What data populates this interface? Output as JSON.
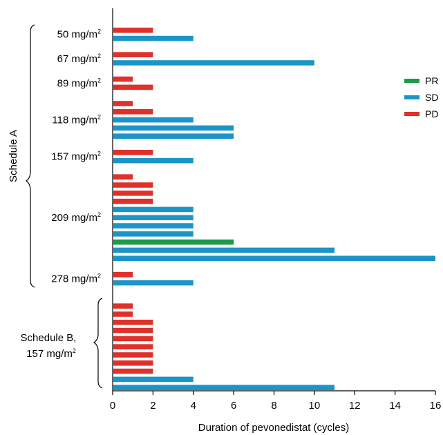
{
  "chart_data": {
    "type": "bar",
    "orientation": "horizontal",
    "xlabel": "Duration of pevonedistat (cycles)",
    "xlim": [
      0,
      16
    ],
    "xticks": [
      0,
      2,
      4,
      6,
      8,
      10,
      12,
      14,
      16
    ],
    "grid": false,
    "legend_position": "right",
    "legend": [
      {
        "label": "PR",
        "color": "#1a9b47"
      },
      {
        "label": "SD",
        "color": "#1b95c9"
      },
      {
        "label": "PD",
        "color": "#e0302a"
      }
    ],
    "colors": {
      "PR": "#1a9b47",
      "SD": "#1b95c9",
      "PD": "#e0302a"
    },
    "dose_groups": [
      {
        "dose": "50 mg/m",
        "bars": [
          {
            "response": "PD",
            "cycles": 2
          },
          {
            "response": "SD",
            "cycles": 4
          }
        ]
      },
      {
        "dose": "67 mg/m",
        "bars": [
          {
            "response": "PD",
            "cycles": 2
          },
          {
            "response": "SD",
            "cycles": 10
          }
        ]
      },
      {
        "dose": "89 mg/m",
        "bars": [
          {
            "response": "PD",
            "cycles": 1
          },
          {
            "response": "PD",
            "cycles": 2
          }
        ]
      },
      {
        "dose": "118 mg/m",
        "bars": [
          {
            "response": "PD",
            "cycles": 1
          },
          {
            "response": "PD",
            "cycles": 2
          },
          {
            "response": "SD",
            "cycles": 4
          },
          {
            "response": "SD",
            "cycles": 6
          },
          {
            "response": "SD",
            "cycles": 6
          }
        ]
      },
      {
        "dose": "157 mg/m",
        "bars": [
          {
            "response": "PD",
            "cycles": 2
          },
          {
            "response": "SD",
            "cycles": 4
          }
        ]
      },
      {
        "dose": "209 mg/m",
        "bars": [
          {
            "response": "PD",
            "cycles": 1
          },
          {
            "response": "PD",
            "cycles": 2
          },
          {
            "response": "PD",
            "cycles": 2
          },
          {
            "response": "PD",
            "cycles": 2
          },
          {
            "response": "SD",
            "cycles": 4
          },
          {
            "response": "SD",
            "cycles": 4
          },
          {
            "response": "SD",
            "cycles": 4
          },
          {
            "response": "SD",
            "cycles": 4
          },
          {
            "response": "PR",
            "cycles": 6
          },
          {
            "response": "SD",
            "cycles": 11
          },
          {
            "response": "SD",
            "cycles": 16
          }
        ]
      },
      {
        "dose": "278 mg/m",
        "bars": [
          {
            "response": "PD",
            "cycles": 1
          },
          {
            "response": "SD",
            "cycles": 4
          }
        ]
      },
      {
        "dose": "157 mg/m",
        "bars": [
          {
            "response": "PD",
            "cycles": 1
          },
          {
            "response": "PD",
            "cycles": 1
          },
          {
            "response": "PD",
            "cycles": 2
          },
          {
            "response": "PD",
            "cycles": 2
          },
          {
            "response": "PD",
            "cycles": 2
          },
          {
            "response": "PD",
            "cycles": 2
          },
          {
            "response": "PD",
            "cycles": 2
          },
          {
            "response": "PD",
            "cycles": 2
          },
          {
            "response": "PD",
            "cycles": 2
          },
          {
            "response": "SD",
            "cycles": 4
          },
          {
            "response": "SD",
            "cycles": 11
          }
        ]
      }
    ],
    "schedules": [
      {
        "label": "Schedule A",
        "label_lines": [
          "Schedule A"
        ]
      },
      {
        "label": "Schedule B, 157 mg/m2",
        "label_lines": [
          "Schedule B,",
          "157 mg/m"
        ]
      }
    ],
    "superscript": "2"
  }
}
